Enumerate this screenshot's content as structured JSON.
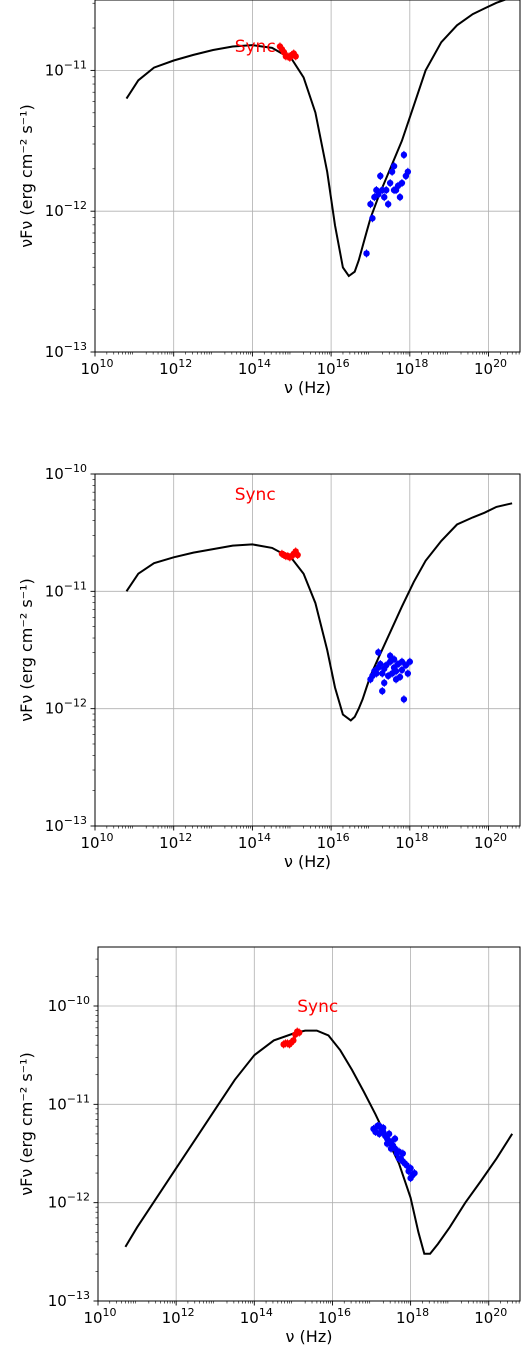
{
  "chart_data": [
    {
      "type": "scatter",
      "title": "",
      "xlabel": "ν (Hz)",
      "ylabel": "νFν (erg cm⁻² s⁻¹)",
      "xscale": "log",
      "yscale": "log",
      "xlim_log10": [
        10,
        20.8
      ],
      "ylim_log10": [
        -13,
        -10.5
      ],
      "xticks_log10": [
        10,
        12,
        14,
        16,
        18,
        20
      ],
      "yticks_log10": [
        -13,
        -12,
        -11
      ],
      "grid": true,
      "annotation": {
        "text": "Sync",
        "color": "#ff0000",
        "x_log10": 13.55,
        "y_log10": -10.87
      },
      "series": [
        {
          "kind": "line",
          "color": "#000000",
          "x_log10": [
            10.8,
            11.1,
            11.5,
            12.0,
            12.5,
            13.0,
            13.5,
            14.0,
            14.5,
            15.0,
            15.3,
            15.6,
            15.9,
            16.1,
            16.3,
            16.45,
            16.6,
            16.7,
            16.8,
            16.9,
            17.0,
            17.2,
            17.5,
            17.8,
            18.1,
            18.4,
            18.8,
            19.2,
            19.6,
            19.9,
            20.2,
            20.6
          ],
          "y_log10": [
            -11.2,
            -11.07,
            -10.98,
            -10.93,
            -10.89,
            -10.855,
            -10.83,
            -10.82,
            -10.84,
            -10.92,
            -11.05,
            -11.3,
            -11.72,
            -12.1,
            -12.4,
            -12.46,
            -12.43,
            -12.35,
            -12.25,
            -12.15,
            -12.05,
            -11.9,
            -11.7,
            -11.5,
            -11.25,
            -11.0,
            -10.8,
            -10.68,
            -10.6,
            -10.56,
            -10.52,
            -10.48
          ]
        },
        {
          "kind": "points",
          "color": "#ff0000",
          "x_log10": [
            14.7,
            14.75,
            14.8,
            14.85,
            14.9,
            14.95,
            15.0,
            15.05,
            15.1
          ],
          "y_log10": [
            -10.83,
            -10.85,
            -10.87,
            -10.9,
            -10.9,
            -10.91,
            -10.89,
            -10.88,
            -10.9
          ]
        },
        {
          "kind": "points",
          "color": "#0000ff",
          "x_log10": [
            16.9,
            17.0,
            17.05,
            17.1,
            17.15,
            17.2,
            17.25,
            17.3,
            17.35,
            17.4,
            17.45,
            17.5,
            17.55,
            17.6,
            17.6,
            17.65,
            17.7,
            17.75,
            17.8,
            17.85,
            17.9,
            17.95
          ],
          "y_log10": [
            -12.3,
            -11.95,
            -12.05,
            -11.9,
            -11.85,
            -11.88,
            -11.75,
            -11.85,
            -11.9,
            -11.85,
            -11.95,
            -11.8,
            -11.72,
            -11.68,
            -11.85,
            -11.85,
            -11.82,
            -11.9,
            -11.8,
            -11.6,
            -11.75,
            -11.72
          ]
        }
      ]
    },
    {
      "type": "scatter",
      "title": "",
      "xlabel": "ν (Hz)",
      "ylabel": "νFν (erg cm⁻² s⁻¹)",
      "xscale": "log",
      "yscale": "log",
      "xlim_log10": [
        10,
        20.8
      ],
      "ylim_log10": [
        -13,
        -10
      ],
      "xticks_log10": [
        10,
        12,
        14,
        16,
        18,
        20
      ],
      "yticks_log10": [
        -13,
        -12,
        -11,
        -10
      ],
      "grid": true,
      "annotation": {
        "text": "Sync",
        "color": "#ff0000",
        "x_log10": 13.55,
        "y_log10": -10.22
      },
      "series": [
        {
          "kind": "line",
          "color": "#000000",
          "x_log10": [
            10.8,
            11.1,
            11.5,
            12.0,
            12.5,
            13.0,
            13.5,
            14.0,
            14.5,
            15.0,
            15.3,
            15.6,
            15.9,
            16.1,
            16.3,
            16.5,
            16.6,
            16.7,
            16.8,
            16.9,
            17.0,
            17.2,
            17.5,
            17.8,
            18.1,
            18.4,
            18.8,
            19.2,
            19.6,
            19.9,
            20.2,
            20.6
          ],
          "y_log10": [
            -11.0,
            -10.85,
            -10.76,
            -10.71,
            -10.67,
            -10.64,
            -10.61,
            -10.6,
            -10.63,
            -10.72,
            -10.85,
            -11.1,
            -11.5,
            -11.82,
            -12.05,
            -12.1,
            -12.07,
            -12.0,
            -11.92,
            -11.82,
            -11.72,
            -11.57,
            -11.35,
            -11.13,
            -10.92,
            -10.74,
            -10.57,
            -10.43,
            -10.37,
            -10.33,
            -10.28,
            -10.25
          ]
        },
        {
          "kind": "points",
          "color": "#ff0000",
          "x_log10": [
            14.75,
            14.8,
            14.85,
            14.9,
            14.95,
            15.0,
            15.05,
            15.1,
            15.15
          ],
          "y_log10": [
            -10.68,
            -10.69,
            -10.7,
            -10.7,
            -10.71,
            -10.7,
            -10.68,
            -10.66,
            -10.69
          ]
        },
        {
          "kind": "points",
          "color": "#0000ff",
          "x_log10": [
            17.0,
            17.05,
            17.1,
            17.15,
            17.2,
            17.25,
            17.3,
            17.35,
            17.4,
            17.45,
            17.5,
            17.55,
            17.6,
            17.65,
            17.7,
            17.75,
            17.8,
            17.85,
            17.9,
            17.95,
            18.0,
            17.2,
            17.35,
            17.5,
            17.65,
            17.8,
            17.3,
            17.6
          ],
          "y_log10": [
            -11.75,
            -11.72,
            -11.68,
            -11.7,
            -11.65,
            -11.62,
            -11.7,
            -11.66,
            -11.63,
            -11.72,
            -11.6,
            -11.7,
            -11.65,
            -11.68,
            -11.62,
            -11.73,
            -11.67,
            -11.92,
            -11.63,
            -11.7,
            -11.6,
            -11.52,
            -11.78,
            -11.55,
            -11.75,
            -11.6,
            -11.85,
            -11.58
          ]
        }
      ]
    },
    {
      "type": "scatter",
      "title": "",
      "xlabel": "ν (Hz)",
      "ylabel": "νFν (erg cm⁻² s⁻¹)",
      "xscale": "log",
      "yscale": "log",
      "xlim_log10": [
        10,
        20.8
      ],
      "ylim_log10": [
        -13,
        -9.4
      ],
      "xticks_log10": [
        10,
        12,
        14,
        16,
        18,
        20
      ],
      "yticks_log10": [
        -13,
        -12,
        -11,
        -10
      ],
      "grid": true,
      "annotation": {
        "text": "Sync",
        "color": "#ff0000",
        "x_log10": 15.1,
        "y_log10": -10.06
      },
      "series": [
        {
          "kind": "line",
          "color": "#000000",
          "x_log10": [
            10.7,
            11.0,
            11.5,
            12.0,
            12.5,
            13.0,
            13.5,
            14.0,
            14.5,
            15.0,
            15.3,
            15.6,
            15.9,
            16.2,
            16.5,
            16.8,
            17.1,
            17.4,
            17.7,
            18.0,
            18.2,
            18.35,
            18.5,
            18.7,
            19.0,
            19.4,
            19.8,
            20.2,
            20.6
          ],
          "y_log10": [
            -12.45,
            -12.25,
            -11.95,
            -11.65,
            -11.35,
            -11.05,
            -10.75,
            -10.5,
            -10.35,
            -10.28,
            -10.25,
            -10.25,
            -10.3,
            -10.45,
            -10.65,
            -10.87,
            -11.1,
            -11.35,
            -11.6,
            -11.95,
            -12.3,
            -12.52,
            -12.52,
            -12.42,
            -12.25,
            -12.0,
            -11.78,
            -11.55,
            -11.3
          ]
        },
        {
          "kind": "points",
          "color": "#ff0000",
          "x_log10": [
            14.75,
            14.8,
            14.85,
            14.9,
            14.95,
            15.0,
            15.05,
            15.1,
            15.15
          ],
          "y_log10": [
            -10.39,
            -10.38,
            -10.38,
            -10.39,
            -10.37,
            -10.35,
            -10.29,
            -10.26,
            -10.27
          ]
        },
        {
          "kind": "points",
          "color": "#0000ff",
          "x_log10": [
            17.05,
            17.1,
            17.15,
            17.2,
            17.25,
            17.3,
            17.35,
            17.4,
            17.45,
            17.5,
            17.55,
            17.6,
            17.65,
            17.7,
            17.75,
            17.8,
            17.85,
            17.9,
            17.95,
            18.0,
            18.05,
            18.1,
            17.2,
            17.4,
            17.6,
            17.8,
            18.0,
            17.3,
            17.5,
            17.7
          ],
          "y_log10": [
            -11.25,
            -11.28,
            -11.22,
            -11.3,
            -11.26,
            -11.24,
            -11.32,
            -11.35,
            -11.3,
            -11.38,
            -11.42,
            -11.45,
            -11.5,
            -11.48,
            -11.55,
            -11.58,
            -11.6,
            -11.62,
            -11.68,
            -11.65,
            -11.72,
            -11.7,
            -11.22,
            -11.4,
            -11.35,
            -11.5,
            -11.75,
            -11.28,
            -11.45,
            -11.55
          ]
        }
      ]
    }
  ]
}
